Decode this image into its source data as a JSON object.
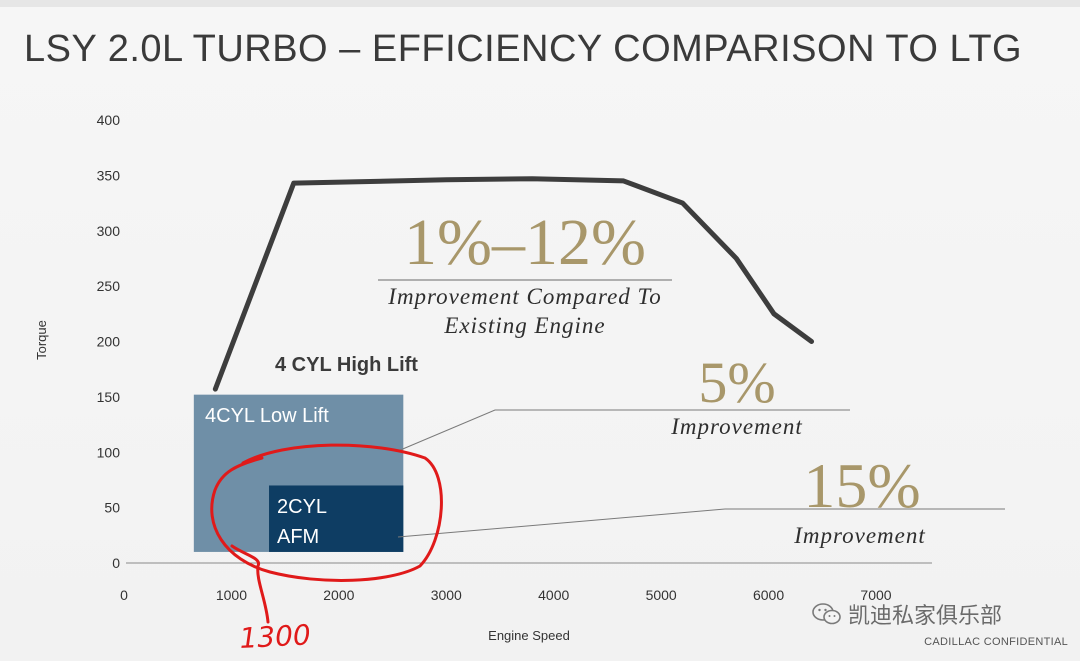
{
  "slide": {
    "title": "LSY 2.0L TURBO – EFFICIENCY COMPARISON TO LTG",
    "confidential": "CADILLAC CONFIDENTIAL",
    "watermark_text": "凯迪私家俱乐部",
    "handwritten_note": "1300"
  },
  "colors": {
    "curve": "#3d3d3d",
    "region_4cyl_low": "#6f8fa7",
    "region_2cyl": "#0e3d63",
    "gold": "#a8976a",
    "annotation_red": "#e01a1a",
    "axis_text": "#333333"
  },
  "chart_data": {
    "type": "area",
    "title": "",
    "xlabel": "Engine Speed",
    "ylabel": "Torque",
    "xlim": [
      0,
      7000
    ],
    "ylim": [
      0,
      400
    ],
    "x_ticks": [
      "0",
      "1000",
      "2000",
      "3000",
      "4000",
      "5000",
      "6000",
      "7000"
    ],
    "y_ticks": [
      "0",
      "50",
      "100",
      "150",
      "200",
      "250",
      "300",
      "350",
      "400"
    ],
    "grid": false,
    "torque_curve": [
      {
        "x": 850,
        "y": 157
      },
      {
        "x": 1580,
        "y": 343
      },
      {
        "x": 3000,
        "y": 346
      },
      {
        "x": 3800,
        "y": 347
      },
      {
        "x": 4650,
        "y": 345
      },
      {
        "x": 5200,
        "y": 325
      },
      {
        "x": 5700,
        "y": 275
      },
      {
        "x": 6050,
        "y": 225
      },
      {
        "x": 6400,
        "y": 200
      }
    ],
    "regions": [
      {
        "name": "4CYL Low Lift",
        "x": [
          650,
          2600
        ],
        "y": [
          10,
          152
        ]
      },
      {
        "name": "2CYL AFM",
        "x": [
          1350,
          2600
        ],
        "y": [
          10,
          70
        ]
      }
    ],
    "region_labels": {
      "high_lift": "4 CYL High Lift",
      "low_lift": "4CYL Low Lift",
      "afm_line1": "2CYL",
      "afm_line2": "AFM"
    },
    "callouts": [
      {
        "value": "1%–12%",
        "caption_line1": "Improvement Compared To",
        "caption_line2": "Existing Engine"
      },
      {
        "value": "5%",
        "caption_line1": "Improvement"
      },
      {
        "value": "15%",
        "caption_line1": "Improvement"
      }
    ]
  }
}
